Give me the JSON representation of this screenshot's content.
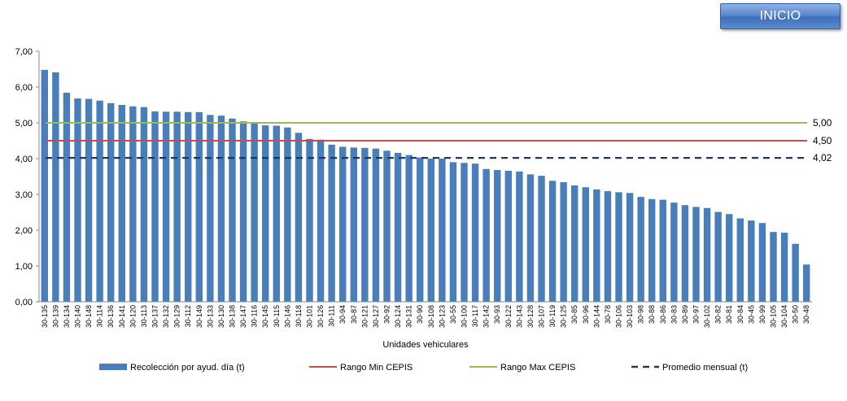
{
  "inicio_button": {
    "label": "INICIO"
  },
  "chart_data": {
    "type": "bar",
    "xlabel": "Unidades vehiculares",
    "ylabel": "",
    "ylim": [
      0,
      7
    ],
    "yticks": [
      "0,00",
      "1,00",
      "2,00",
      "3,00",
      "4,00",
      "5,00",
      "6,00",
      "7,00"
    ],
    "grid": false,
    "legend_position": "bottom",
    "categories": [
      "30-135",
      "30-139",
      "30-134",
      "30-140",
      "30-148",
      "30-114",
      "30-136",
      "30-141",
      "30-120",
      "30-113",
      "30-137",
      "30-132",
      "30-129",
      "30-112",
      "30-149",
      "30-133",
      "30-130",
      "30-138",
      "30-147",
      "30-116",
      "30-145",
      "30-115",
      "30-146",
      "30-118",
      "30-101",
      "30-126",
      "30-111",
      "30-94",
      "30-87",
      "30-121",
      "30-127",
      "30-92",
      "30-124",
      "30-131",
      "30-90",
      "30-108",
      "30-123",
      "30-55",
      "30-100",
      "30-117",
      "30-142",
      "30-93",
      "30-122",
      "30-143",
      "30-128",
      "30-107",
      "30-119",
      "30-125",
      "30-85",
      "30-96",
      "30-144",
      "30-78",
      "30-106",
      "30-103",
      "30-98",
      "30-88",
      "30-86",
      "30-83",
      "30-89",
      "30-97",
      "30-102",
      "30-82",
      "30-81",
      "30-84",
      "30-45",
      "30-99",
      "30-105",
      "30-104",
      "30-50",
      "30-48"
    ],
    "series": [
      {
        "name": "Recolección por ayud. día (t)",
        "kind": "bar",
        "color": "#4a7ebb",
        "values": [
          6.48,
          6.41,
          5.84,
          5.68,
          5.67,
          5.62,
          5.55,
          5.5,
          5.46,
          5.44,
          5.32,
          5.31,
          5.31,
          5.3,
          5.3,
          5.22,
          5.2,
          5.12,
          5.04,
          5.0,
          4.93,
          4.92,
          4.87,
          4.72,
          4.55,
          4.53,
          4.39,
          4.33,
          4.31,
          4.3,
          4.28,
          4.22,
          4.16,
          4.1,
          4.03,
          4.0,
          4.0,
          3.9,
          3.88,
          3.86,
          3.71,
          3.68,
          3.66,
          3.64,
          3.56,
          3.52,
          3.38,
          3.34,
          3.25,
          3.2,
          3.14,
          3.09,
          3.06,
          3.04,
          2.93,
          2.87,
          2.85,
          2.77,
          2.7,
          2.65,
          2.62,
          2.51,
          2.45,
          2.33,
          2.27,
          2.2,
          1.95,
          1.93,
          1.62,
          1.04
        ]
      },
      {
        "name": "Rango Min CEPIS",
        "kind": "hline",
        "value": 4.5,
        "label": "4,50",
        "color": "#c0504d"
      },
      {
        "name": "Rango Max CEPIS",
        "kind": "hline",
        "value": 5.0,
        "label": "5,00",
        "color": "#9bbb59"
      },
      {
        "name": "Promedio mensual (t)",
        "kind": "hline-dashed",
        "value": 4.02,
        "label": "4,02",
        "color": "#1f3864"
      }
    ]
  }
}
